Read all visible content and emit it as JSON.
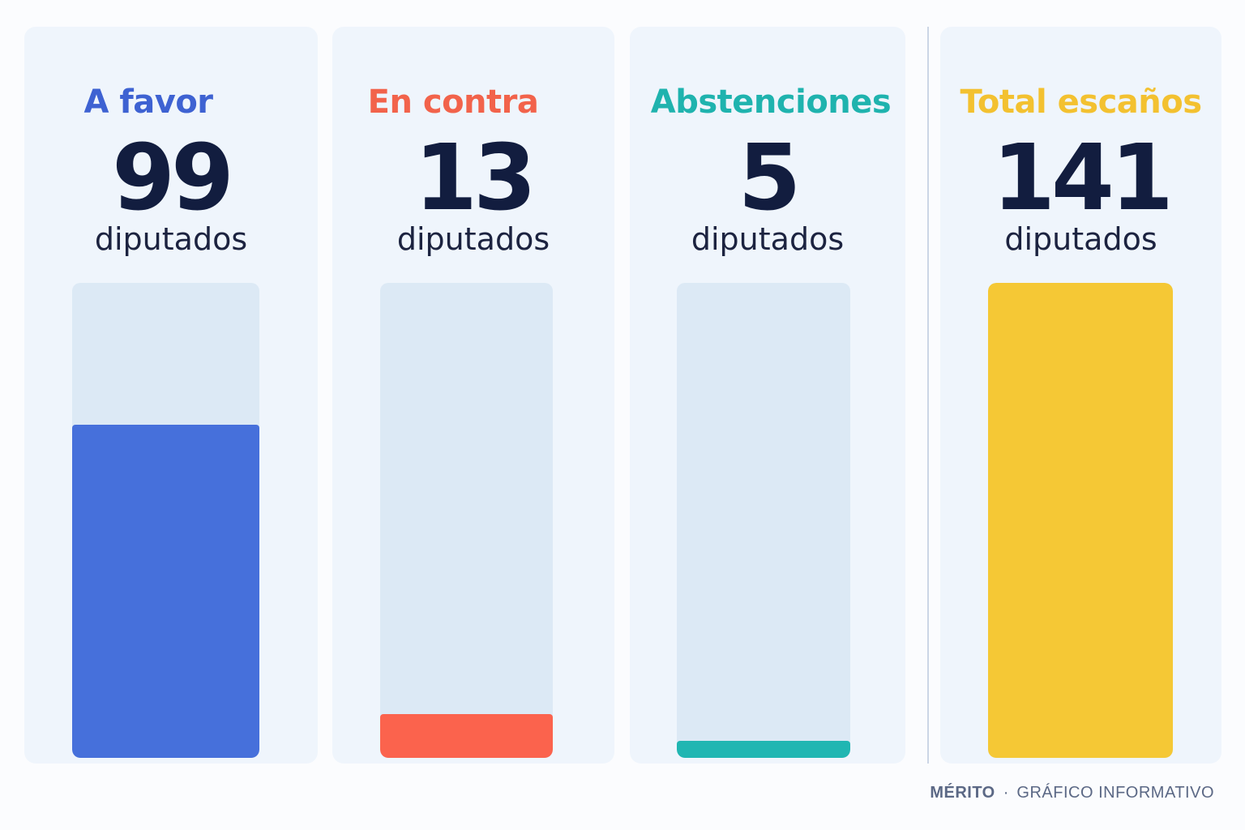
{
  "chart_data": {
    "type": "bar",
    "categories": [
      "A favor",
      "En contra",
      "Abstenciones",
      "Total escaños"
    ],
    "values": [
      99,
      13,
      5,
      141
    ],
    "unit": "diputados",
    "ylim": [
      0,
      141
    ],
    "colors": {
      "A favor": "#4670db",
      "En contra": "#fb634d",
      "Abstenciones": "#20b6b2",
      "Total escaños": "#f5c835"
    },
    "track_color": "#dce9f5",
    "value_color": "#121d3f"
  },
  "footer": {
    "brand": "MÉRITO",
    "separator": "·",
    "subtitle": "GRÁFICO INFORMATIVO"
  }
}
